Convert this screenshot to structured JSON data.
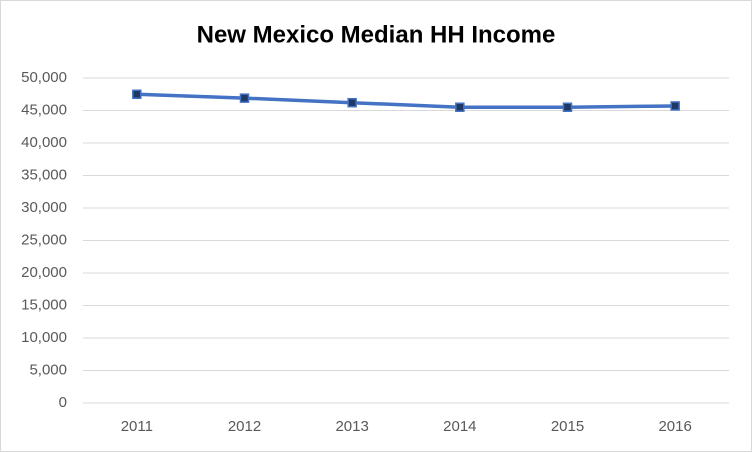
{
  "chart_data": {
    "type": "line",
    "title": "New Mexico Median HH Income",
    "categories": [
      "2011",
      "2012",
      "2013",
      "2014",
      "2015",
      "2016"
    ],
    "series": [
      {
        "color": "#4472c4",
        "values": [
          47500,
          46900,
          46200,
          45500,
          45500,
          45700
        ]
      }
    ],
    "ylim": [
      0,
      50000
    ],
    "yticks": [
      0,
      {
        "value": 5000,
        "label": "5,000"
      },
      {
        "value": 10000,
        "label": "10,000"
      },
      {
        "value": 15000,
        "label": "15,000"
      },
      {
        "value": 20000,
        "label": "20,000"
      },
      {
        "value": 25000,
        "label": "25,000"
      },
      {
        "value": 30000,
        "label": "30,000"
      },
      {
        "value": 35000,
        "label": "35,000"
      },
      {
        "value": 40000,
        "label": "40,000"
      },
      {
        "value": 45000,
        "label": "45,000"
      },
      {
        "value": 50000,
        "label": "50,000"
      }
    ],
    "grid": true
  }
}
